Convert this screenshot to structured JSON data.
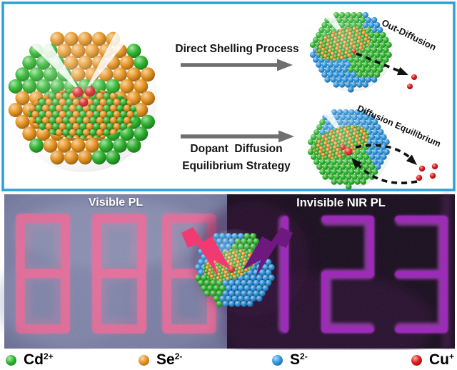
{
  "figure": {
    "scheme": {
      "border_color": "#2b9fd9",
      "arrow_color": "#6f6f6f",
      "direct_arrow_label": "Direct Shelling Process",
      "equilibrium_arrow_label_line1": "Dopant  Diffusion",
      "equilibrium_arrow_label_line2": "Equilibrium Strategy",
      "out_diffusion_label": "Out-Diffusion",
      "diffusion_equilibrium_label": "Diffusion Equilibrium",
      "dashed_arrow_color": "#111111"
    },
    "photos": {
      "left": {
        "title": "Visible PL",
        "display_digits": "888",
        "digit_color": "#ee6b9b",
        "background_color": "#797ea6",
        "excitation_bolt_color": "#f23a72"
      },
      "right": {
        "title": "Invisible NIR PL",
        "display_digits": "123",
        "digit_color": "#9b22b8",
        "background_color": "#160a1b",
        "excitation_bolt_color": "#6e1880"
      }
    },
    "legend": [
      {
        "ion": "Cd",
        "charge": "2+",
        "color": "#2eb82e"
      },
      {
        "ion": "Se",
        "charge": "2-",
        "color": "#e8941f"
      },
      {
        "ion": "S",
        "charge": "2-",
        "color": "#2f97e0"
      },
      {
        "ion": "Cu",
        "charge": "+",
        "color": "#e01a1a"
      }
    ]
  }
}
